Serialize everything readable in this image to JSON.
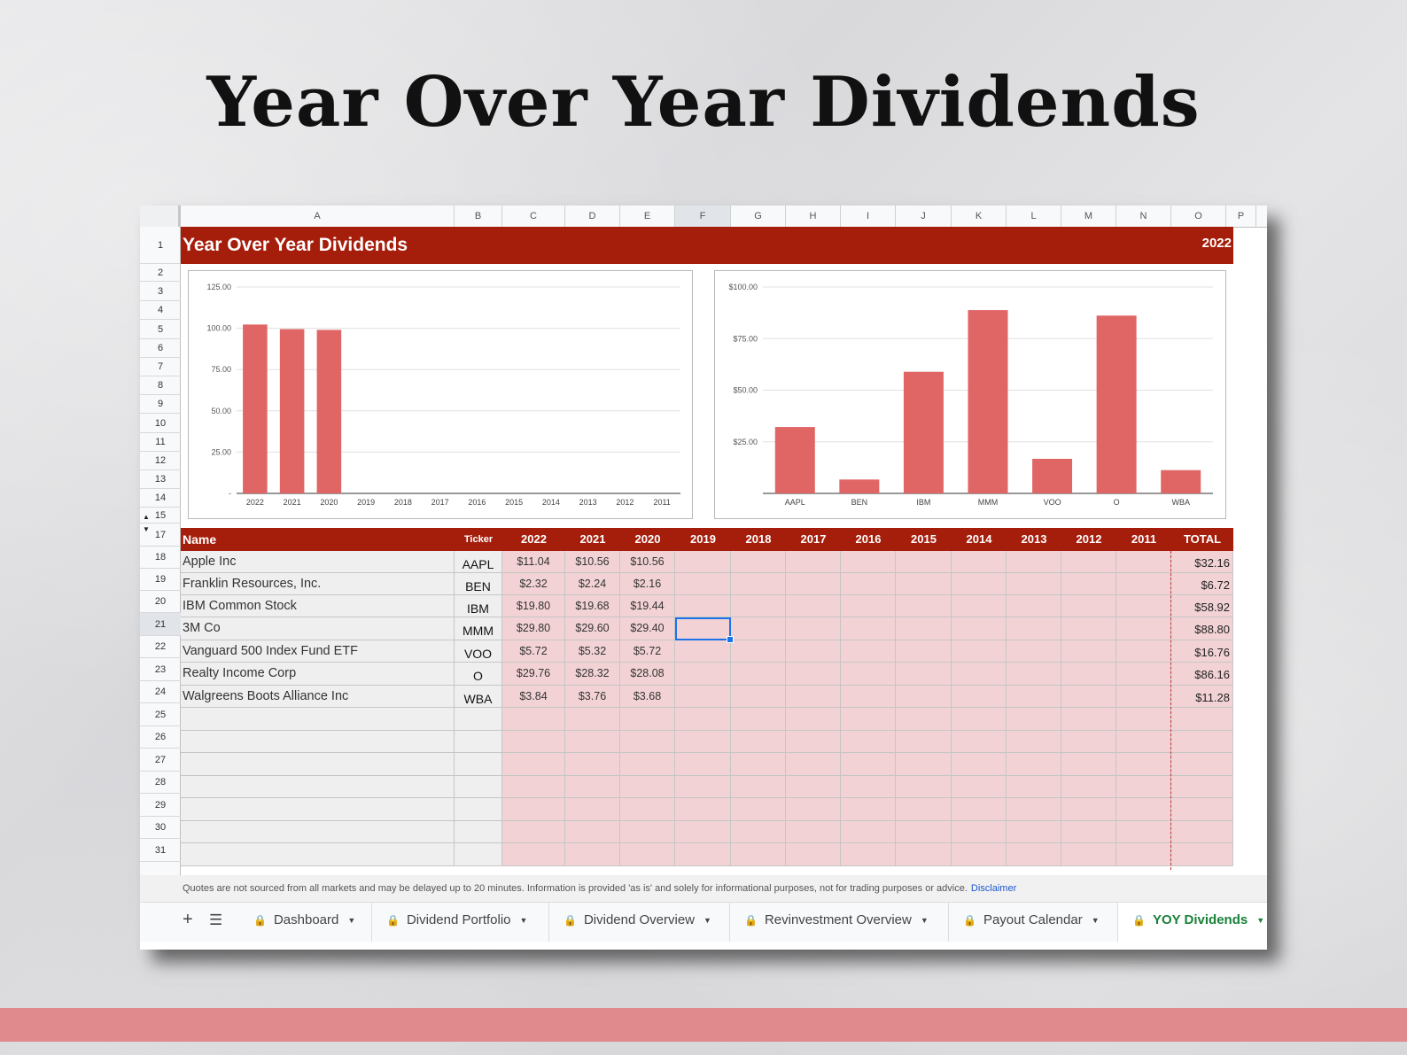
{
  "page_title": "Year Over Year Dividends",
  "sheet": {
    "columns": [
      "A",
      "B",
      "C",
      "D",
      "E",
      "F",
      "G",
      "H",
      "I",
      "J",
      "K",
      "L",
      "M",
      "N",
      "O",
      "P"
    ],
    "rows": [
      "1",
      "2",
      "3",
      "4",
      "5",
      "6",
      "7",
      "8",
      "9",
      "10",
      "11",
      "12",
      "13",
      "14",
      "15",
      "17",
      "18",
      "19",
      "20",
      "21",
      "22",
      "23",
      "24",
      "25",
      "26",
      "27",
      "28",
      "29",
      "30",
      "31"
    ],
    "banner_title": "Year Over Year Dividends",
    "banner_year": "2022",
    "table_headers": [
      "Name",
      "Ticker",
      "2022",
      "2021",
      "2020",
      "2019",
      "2018",
      "2017",
      "2016",
      "2015",
      "2014",
      "2013",
      "2012",
      "2011",
      "TOTAL"
    ],
    "holdings": [
      {
        "name": "Apple Inc",
        "ticker": "AAPL",
        "y2022": "$11.04",
        "y2021": "$10.56",
        "y2020": "$10.56",
        "total": "$32.16"
      },
      {
        "name": "Franklin Resources, Inc.",
        "ticker": "BEN",
        "y2022": "$2.32",
        "y2021": "$2.24",
        "y2020": "$2.16",
        "total": "$6.72"
      },
      {
        "name": "IBM Common Stock",
        "ticker": "IBM",
        "y2022": "$19.80",
        "y2021": "$19.68",
        "y2020": "$19.44",
        "total": "$58.92"
      },
      {
        "name": "3M Co",
        "ticker": "MMM",
        "y2022": "$29.80",
        "y2021": "$29.60",
        "y2020": "$29.40",
        "total": "$88.80"
      },
      {
        "name": "Vanguard 500 Index Fund ETF",
        "ticker": "VOO",
        "y2022": "$5.72",
        "y2021": "$5.32",
        "y2020": "$5.72",
        "total": "$16.76"
      },
      {
        "name": "Realty Income Corp",
        "ticker": "O",
        "y2022": "$29.76",
        "y2021": "$28.32",
        "y2020": "$28.08",
        "total": "$86.16"
      },
      {
        "name": "Walgreens Boots Alliance Inc",
        "ticker": "WBA",
        "y2022": "$3.84",
        "y2021": "$3.76",
        "y2020": "$3.68",
        "total": "$11.28"
      }
    ],
    "selected_cell": "F21",
    "disclaimer_text": "Quotes are not sourced from all markets and may be delayed up to 20 minutes. Information is provided 'as is' and solely for informational purposes, not for trading purposes or advice.",
    "disclaimer_link": "Disclaimer",
    "tabs": [
      {
        "label": "Dashboard",
        "locked": true,
        "active": false
      },
      {
        "label": "Dividend Portfolio",
        "locked": true,
        "active": false
      },
      {
        "label": "Dividend Overview",
        "locked": true,
        "active": false
      },
      {
        "label": "Revinvestment Overview",
        "locked": true,
        "active": false
      },
      {
        "label": "Payout Calendar",
        "locked": true,
        "active": false
      },
      {
        "label": "YOY Dividends",
        "locked": true,
        "active": true
      }
    ],
    "icons": {
      "add_sheet": "plus-icon",
      "all_sheets": "list-icon",
      "lock": "lock-icon",
      "dropdown": "caret-down-icon"
    },
    "colors": {
      "banner": "#a51e0c",
      "bar": "#e06666",
      "cell_fill": "#f2d2d5",
      "active_tab": "#188038",
      "selection": "#1a73e8"
    }
  },
  "chart_data": [
    {
      "type": "bar",
      "categories": [
        "2022",
        "2021",
        "2020",
        "2019",
        "2018",
        "2017",
        "2016",
        "2015",
        "2014",
        "2013",
        "2012",
        "2011"
      ],
      "values": [
        102.28,
        99.48,
        99.04,
        0,
        0,
        0,
        0,
        0,
        0,
        0,
        0,
        0
      ],
      "ylim": [
        0,
        125
      ],
      "yticks": [
        "125.00",
        "100.00",
        "75.00",
        "50.00",
        "25.00",
        "-"
      ],
      "grid": true
    },
    {
      "type": "bar",
      "categories": [
        "AAPL",
        "BEN",
        "IBM",
        "MMM",
        "VOO",
        "O",
        "WBA"
      ],
      "values": [
        32.16,
        6.72,
        58.92,
        88.8,
        16.76,
        86.16,
        11.28
      ],
      "ylim": [
        0,
        100
      ],
      "yticks": [
        "$100.00",
        "$75.00",
        "$50.00",
        "$25.00"
      ],
      "grid": true
    }
  ]
}
